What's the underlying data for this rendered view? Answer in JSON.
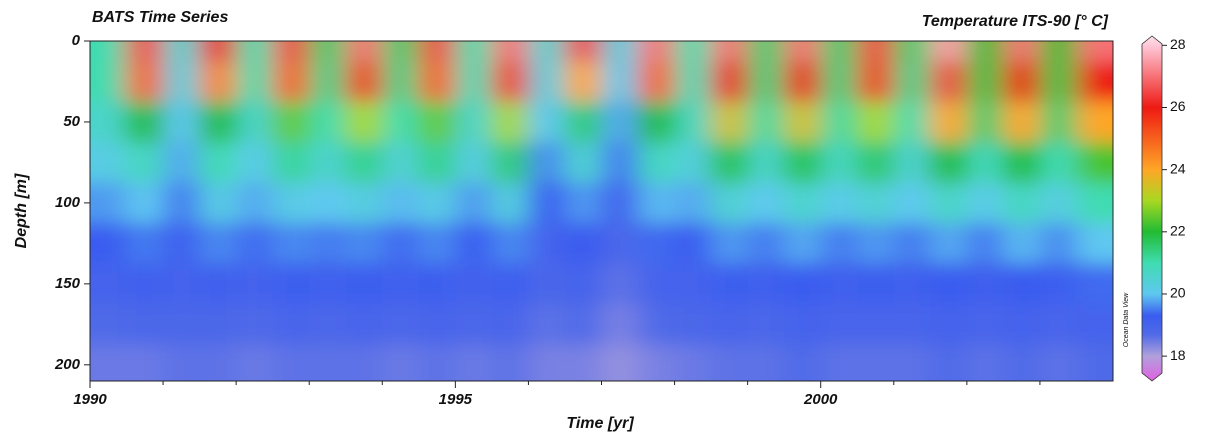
{
  "chart_data": {
    "type": "heatmap",
    "title": "BATS Time Series",
    "colorbar_label": "Temperature ITS-90 [° C]",
    "x_label": "Time [yr]",
    "y_label": "Depth [m]",
    "watermark": "Ocean Data View",
    "xlim": [
      1990,
      2004
    ],
    "xticks": [
      1990,
      1995,
      2000
    ],
    "xminorticks": [
      1991,
      1992,
      1993,
      1994,
      1996,
      1997,
      1998,
      1999,
      2001,
      2002,
      2003
    ],
    "ylim": [
      0,
      210
    ],
    "yticks": [
      0,
      50,
      100,
      150,
      200
    ],
    "invert_y": true,
    "clim": [
      17.2,
      28.3
    ],
    "cticks": [
      18,
      20,
      22,
      24,
      26,
      28
    ],
    "colorscale": [
      [
        17.2,
        "#e060e0"
      ],
      [
        18,
        "#b0a0dc"
      ],
      [
        18.7,
        "#4f6ae8"
      ],
      [
        19.3,
        "#3a5cf0"
      ],
      [
        20,
        "#5fc8f0"
      ],
      [
        21,
        "#3fdcb0"
      ],
      [
        22,
        "#22bb33"
      ],
      [
        23,
        "#a8d822"
      ],
      [
        24,
        "#ffa626"
      ],
      [
        26,
        "#ee1a14"
      ],
      [
        28,
        "#ffc8d8"
      ],
      [
        28.3,
        "#ffe0e8"
      ]
    ],
    "x": [
      1990.25,
      1990.75,
      1991.25,
      1991.75,
      1992.25,
      1992.75,
      1993.25,
      1993.75,
      1994.25,
      1994.75,
      1995.25,
      1995.75,
      1996.25,
      1996.75,
      1997.25,
      1997.75,
      1998.25,
      1998.75,
      1999.25,
      1999.75,
      2000.25,
      2000.75,
      2001.25,
      2001.75,
      2002.25,
      2002.75,
      2003.25,
      2003.75
    ],
    "y": [
      0,
      25,
      50,
      75,
      100,
      125,
      150,
      175,
      200
    ],
    "z": [
      [
        21,
        21,
        20.6,
        20.2,
        19.7,
        19.3,
        19,
        18.7,
        18.5
      ],
      [
        26.5,
        25,
        22,
        20.8,
        20,
        19.5,
        19.1,
        18.8,
        18.5
      ],
      [
        20.5,
        20.3,
        20,
        19.8,
        19.5,
        19.2,
        19,
        18.8,
        18.6
      ],
      [
        26,
        24.5,
        22,
        21,
        20.2,
        19.6,
        19.1,
        18.8,
        18.6
      ],
      [
        21,
        21,
        20.6,
        20.1,
        19.8,
        19.4,
        19,
        18.7,
        18.5
      ],
      [
        26.5,
        25,
        22.5,
        21.2,
        20.2,
        19.6,
        19.2,
        18.9,
        18.6
      ],
      [
        21.5,
        21.3,
        21,
        20.5,
        20,
        19.5,
        19.1,
        18.8,
        18.6
      ],
      [
        27,
        25.5,
        23,
        21.3,
        20.3,
        19.6,
        19.2,
        18.9,
        18.6
      ],
      [
        21.5,
        21.3,
        21,
        20.4,
        19.9,
        19.4,
        19.1,
        18.8,
        18.5
      ],
      [
        26.5,
        25,
        22.5,
        21.3,
        20.2,
        19.6,
        19.2,
        18.9,
        18.6
      ],
      [
        21,
        20.9,
        20.6,
        20.2,
        19.7,
        19.3,
        19,
        18.8,
        18.5
      ],
      [
        27,
        25.5,
        23,
        21.5,
        20.3,
        19.6,
        19.2,
        18.9,
        18.6
      ],
      [
        20.5,
        20.3,
        20,
        19.6,
        19.3,
        19,
        18.8,
        18.6,
        18.4
      ],
      [
        26.5,
        24,
        21.5,
        20.5,
        19.7,
        19.3,
        19,
        18.7,
        18.4
      ],
      [
        20.3,
        20.1,
        19.8,
        19.5,
        19.1,
        18.8,
        18.6,
        18.4,
        18.2
      ],
      [
        27,
        25,
        22,
        20.8,
        19.9,
        19.4,
        19,
        18.7,
        18.4
      ],
      [
        21,
        20.9,
        20.7,
        20.3,
        19.8,
        19.3,
        19,
        18.8,
        18.5
      ],
      [
        27,
        26,
        23.5,
        21.8,
        20.5,
        19.7,
        19.2,
        18.9,
        18.6
      ],
      [
        21.5,
        21.4,
        21.1,
        20.6,
        20,
        19.5,
        19.1,
        18.8,
        18.6
      ],
      [
        27,
        26,
        23.5,
        21.8,
        20.6,
        19.8,
        19.3,
        19,
        18.7
      ],
      [
        21.5,
        21.4,
        21.1,
        20.7,
        20.1,
        19.5,
        19.1,
        18.9,
        18.6
      ],
      [
        26.5,
        25.5,
        23,
        21.6,
        20.5,
        19.7,
        19.2,
        18.9,
        18.6
      ],
      [
        21.5,
        21.3,
        21,
        20.5,
        20,
        19.5,
        19.1,
        18.9,
        18.6
      ],
      [
        27.5,
        26.5,
        24,
        22,
        20.7,
        19.8,
        19.3,
        19,
        18.7
      ],
      [
        22,
        21.8,
        21.5,
        20.8,
        20.1,
        19.5,
        19.1,
        18.9,
        18.6
      ],
      [
        27,
        26,
        24,
        22,
        20.8,
        19.9,
        19.3,
        19,
        18.7
      ],
      [
        22,
        21.8,
        21.5,
        20.9,
        20.2,
        19.6,
        19.2,
        18.9,
        18.6
      ],
      [
        27,
        26,
        24,
        22.3,
        21,
        20,
        19.4,
        19,
        18.7
      ]
    ]
  }
}
